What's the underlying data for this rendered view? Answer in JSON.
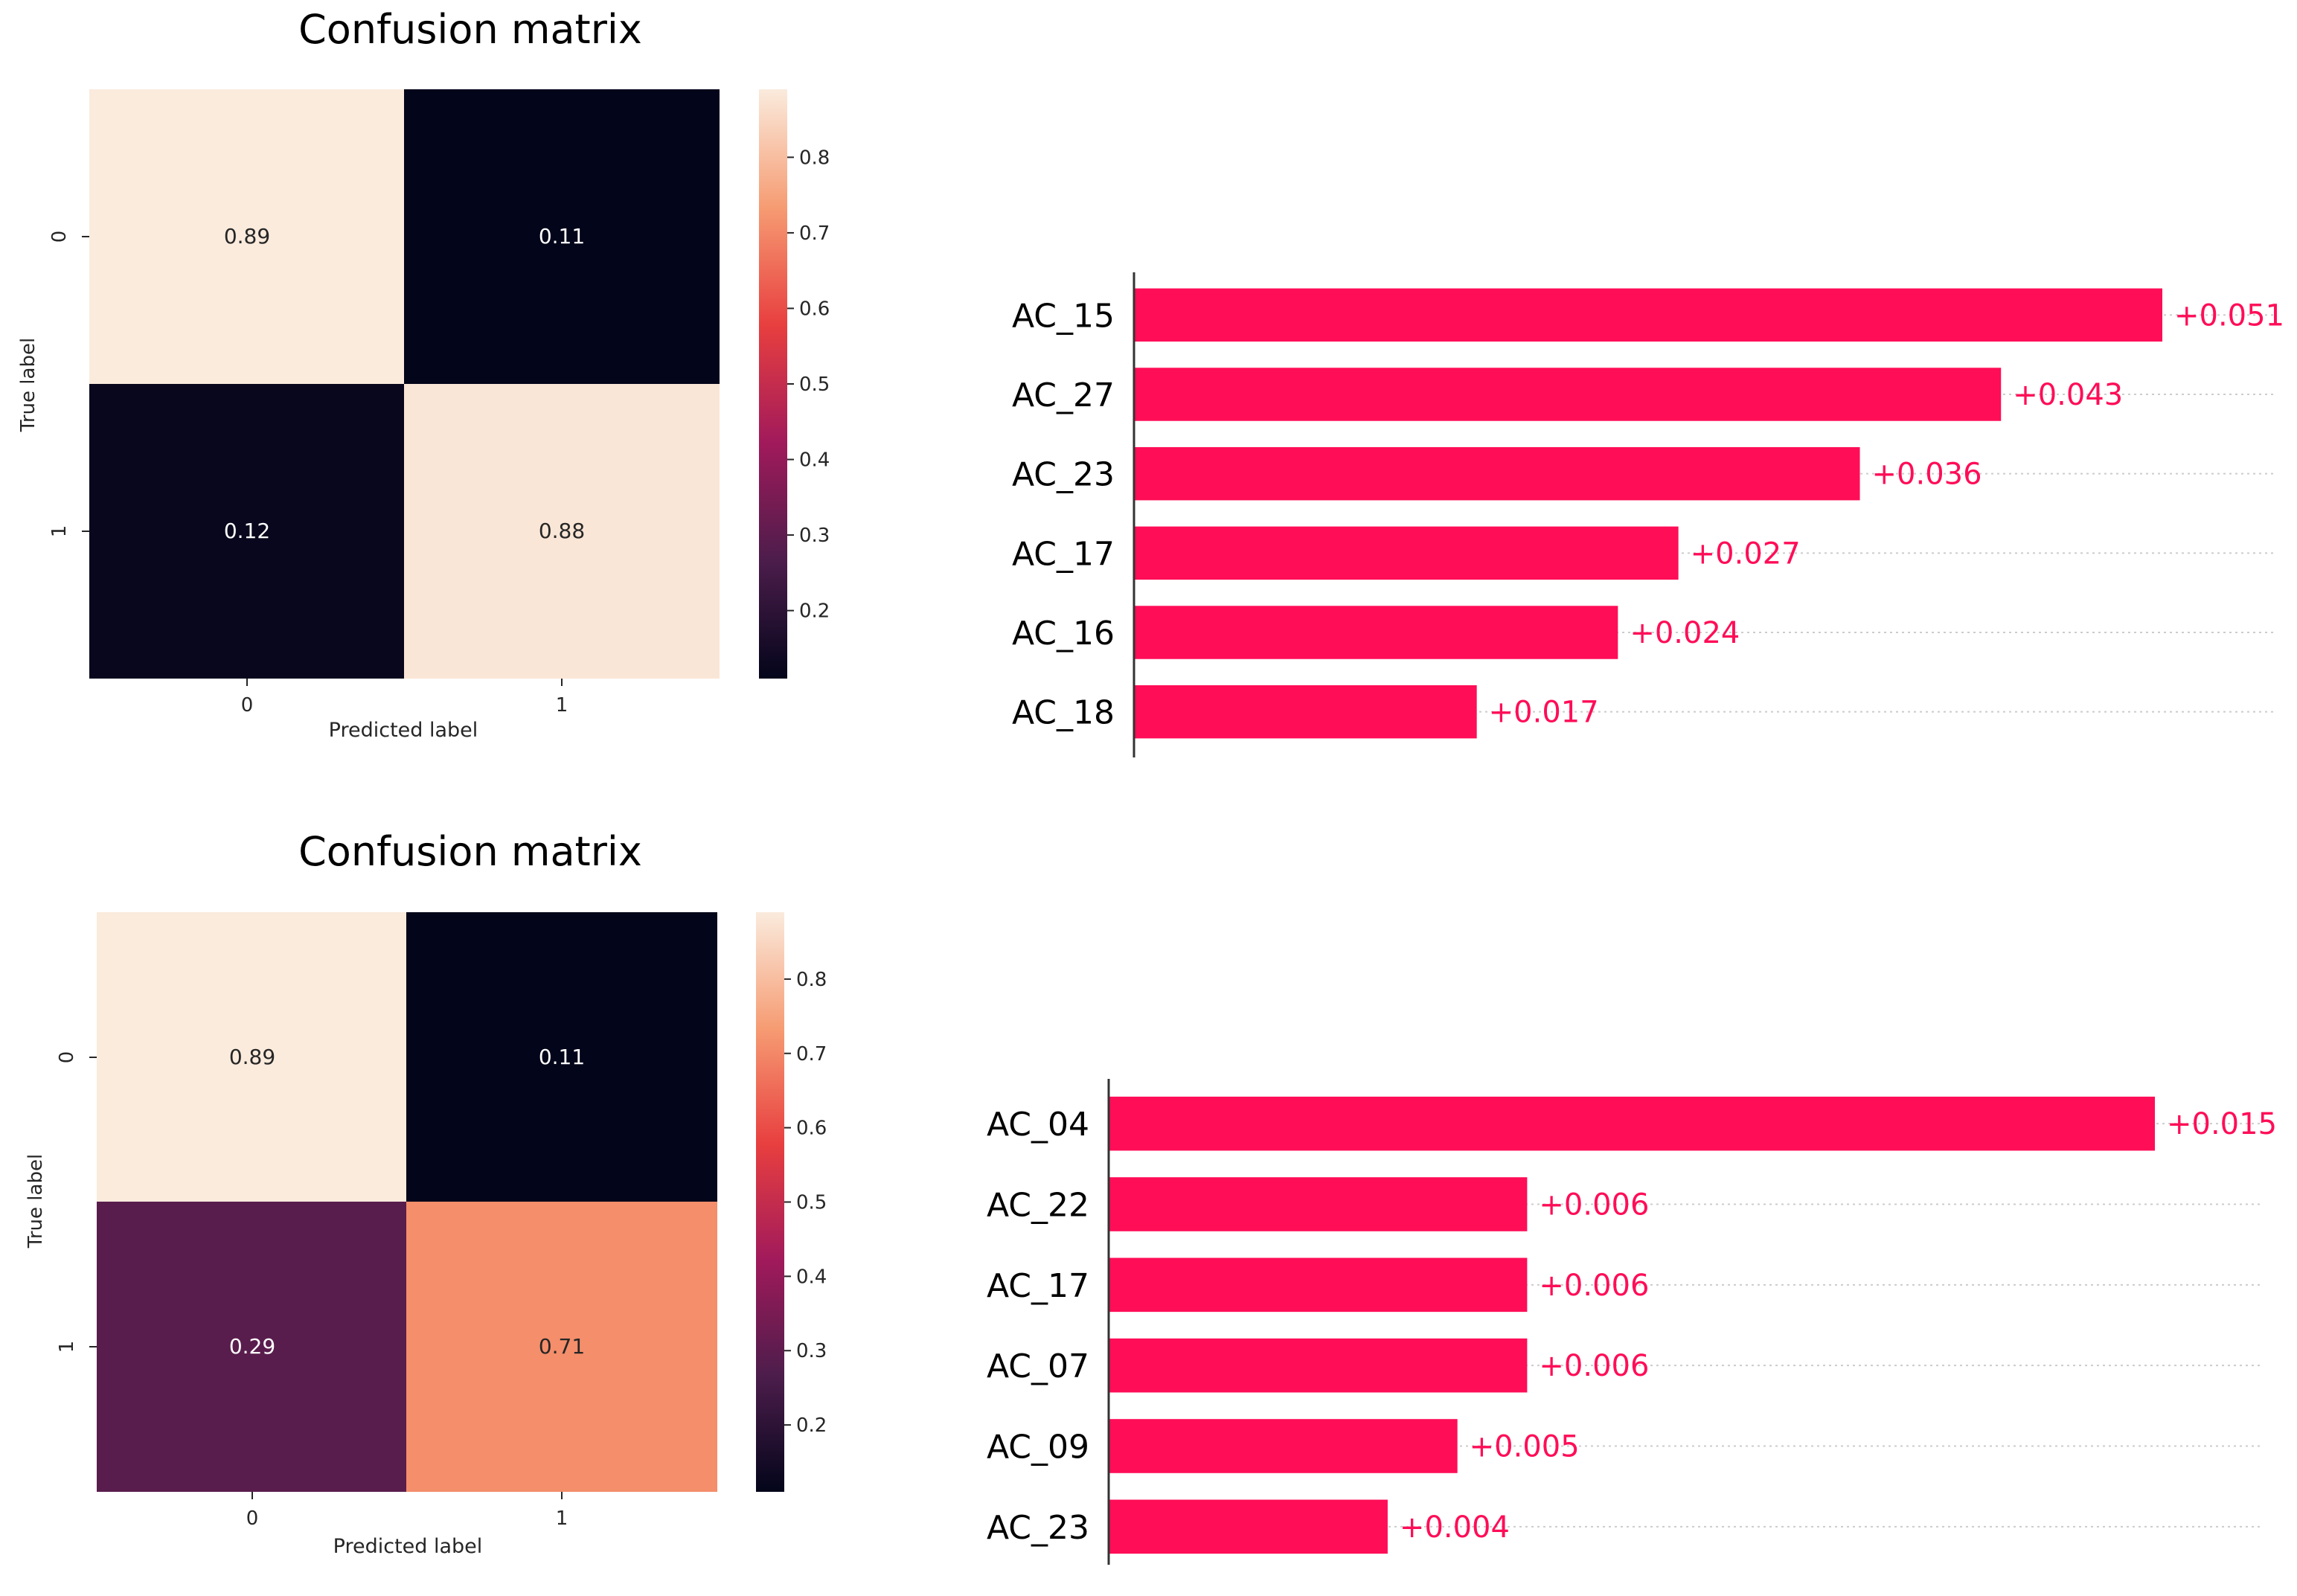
{
  "colors": {
    "bar": "#ff0d57",
    "bar_label": "#ff0d57",
    "text": "#000000",
    "gridline": "#cccccc",
    "cell_text_light": "#ffffff",
    "cell_text_dark": "#262626",
    "colormap_stops": [
      "#03051a",
      "#4c1d4b",
      "#a11a5b",
      "#e83f3f",
      "#f69c73",
      "#faebdd"
    ]
  },
  "chart_data": [
    {
      "type": "heatmap",
      "title": "Confusion matrix",
      "xlabel": "Predicted label",
      "ylabel": "True label",
      "x_ticks": [
        "0",
        "1"
      ],
      "y_ticks": [
        "0",
        "1"
      ],
      "matrix": [
        [
          0.89,
          0.11
        ],
        [
          0.12,
          0.88
        ]
      ],
      "cell_labels": [
        [
          "0.89",
          "0.11"
        ],
        [
          "0.12",
          "0.88"
        ]
      ],
      "colorbar": {
        "vmin": 0.11,
        "vmax": 0.89,
        "ticks": [
          "0.2",
          "0.3",
          "0.4",
          "0.5",
          "0.6",
          "0.7",
          "0.8"
        ],
        "tick_values": [
          0.2,
          0.3,
          0.4,
          0.5,
          0.6,
          0.7,
          0.8
        ]
      }
    },
    {
      "type": "bar",
      "orientation": "horizontal",
      "categories": [
        "AC_15",
        "AC_27",
        "AC_23",
        "AC_17",
        "AC_16",
        "AC_18"
      ],
      "values": [
        0.051,
        0.043,
        0.036,
        0.027,
        0.024,
        0.017
      ],
      "value_labels": [
        "+0.051",
        "+0.043",
        "+0.036",
        "+0.027",
        "+0.024",
        "+0.017"
      ],
      "xlim": [
        0,
        0.054
      ]
    },
    {
      "type": "heatmap",
      "title": "Confusion matrix",
      "xlabel": "Predicted label",
      "ylabel": "True label",
      "x_ticks": [
        "0",
        "1"
      ],
      "y_ticks": [
        "0",
        "1"
      ],
      "matrix": [
        [
          0.89,
          0.11
        ],
        [
          0.29,
          0.71
        ]
      ],
      "cell_labels": [
        [
          "0.89",
          "0.11"
        ],
        [
          "0.29",
          "0.71"
        ]
      ],
      "colorbar": {
        "vmin": 0.11,
        "vmax": 0.89,
        "ticks": [
          "0.2",
          "0.3",
          "0.4",
          "0.5",
          "0.6",
          "0.7",
          "0.8"
        ],
        "tick_values": [
          0.2,
          0.3,
          0.4,
          0.5,
          0.6,
          0.7,
          0.8
        ]
      }
    },
    {
      "type": "bar",
      "orientation": "horizontal",
      "categories": [
        "AC_04",
        "AC_22",
        "AC_17",
        "AC_07",
        "AC_09",
        "AC_23"
      ],
      "values": [
        0.015,
        0.006,
        0.006,
        0.006,
        0.005,
        0.004
      ],
      "value_labels": [
        "+0.015",
        "+0.006",
        "+0.006",
        "+0.006",
        "+0.005",
        "+0.004"
      ],
      "xlim": [
        0,
        0.016
      ]
    }
  ]
}
